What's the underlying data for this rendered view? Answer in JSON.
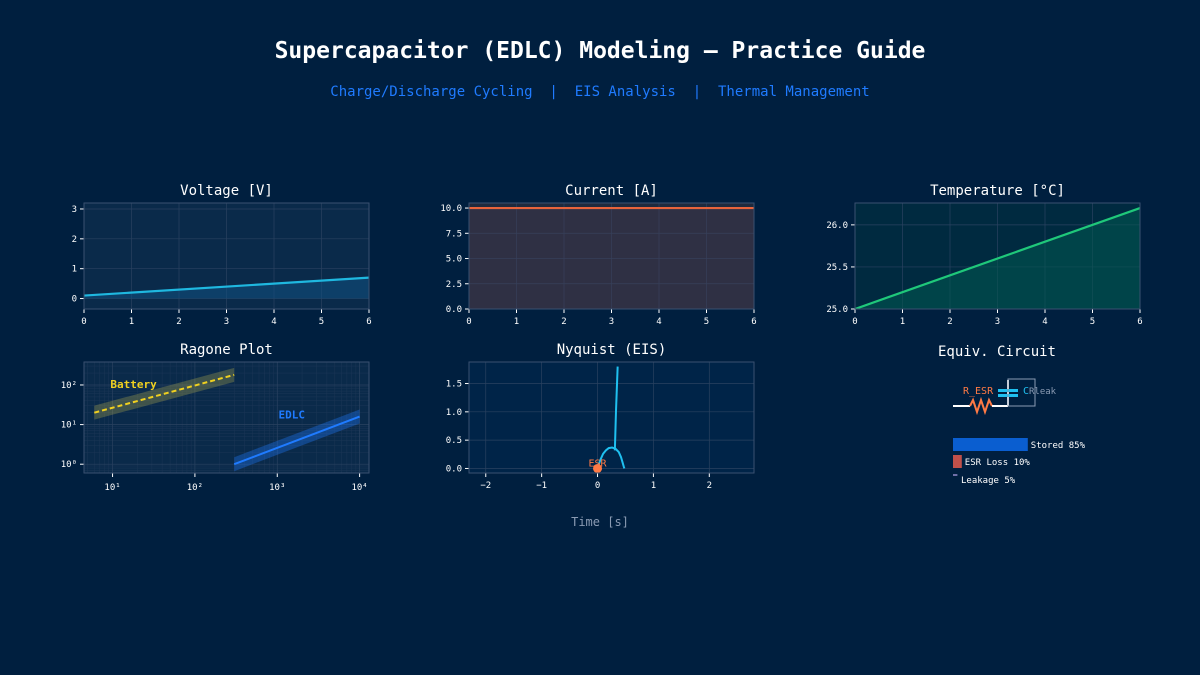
{
  "page": {
    "title": "Supercapacitor (EDLC) Modeling — Practice Guide",
    "subtitle": "Charge/Discharge Cycling  |  EIS Analysis  |  Thermal Management",
    "shared_xlabel": "Time [s]"
  },
  "colors": {
    "background": "#001f3f",
    "voltage": "#1fb8e0",
    "current": "#e8643c",
    "temperature": "#1fc87a",
    "edlc": "#1f7bff",
    "battery": "#f0d020",
    "nyquist": "#1fc0f0",
    "esr_marker": "#ff7a45"
  },
  "chart_data": [
    {
      "id": "voltage",
      "type": "line",
      "title": "Voltage [V]",
      "x": [
        0,
        6
      ],
      "y": [
        0.1,
        0.7
      ],
      "xlim": [
        0,
        6
      ],
      "ylim": [
        -0.35,
        3.2
      ],
      "xticks": [
        0,
        1,
        2,
        3,
        4,
        5,
        6
      ],
      "yticks": [
        0,
        1,
        2,
        3
      ],
      "ytick_labels": [
        "0",
        "1",
        "2",
        "3"
      ],
      "fill": true,
      "grid": true
    },
    {
      "id": "current",
      "type": "line",
      "title": "Current [A]",
      "x": [
        0,
        6
      ],
      "y": [
        10,
        10
      ],
      "xlim": [
        0,
        6
      ],
      "ylim": [
        0,
        10.5
      ],
      "xticks": [
        0,
        1,
        2,
        3,
        4,
        5,
        6
      ],
      "yticks": [
        0,
        2.5,
        5,
        7.5,
        10
      ],
      "ytick_labels": [
        "0.0",
        "2.5",
        "5.0",
        "7.5",
        "10.0"
      ],
      "fill": true,
      "grid": true
    },
    {
      "id": "temperature",
      "type": "line",
      "title": "Temperature [°C]",
      "x": [
        0,
        6
      ],
      "y": [
        25.0,
        26.2
      ],
      "xlim": [
        0,
        6
      ],
      "ylim": [
        25.0,
        26.26
      ],
      "xticks": [
        0,
        1,
        2,
        3,
        4,
        5,
        6
      ],
      "yticks": [
        25.0,
        25.5,
        26.0
      ],
      "ytick_labels": [
        "25.0",
        "25.5",
        "26.0"
      ],
      "fill": true,
      "grid": true
    },
    {
      "id": "ragone",
      "type": "line",
      "title": "Ragone Plot",
      "log_scale": true,
      "xlim": [
        4.5,
        13000
      ],
      "ylim": [
        0.6,
        380
      ],
      "xticks": [
        10,
        100,
        1000,
        10000
      ],
      "xtick_labels": [
        "10¹",
        "10²",
        "10³",
        "10⁴"
      ],
      "yticks": [
        1,
        10,
        100
      ],
      "ytick_labels": [
        "10⁰",
        "10¹",
        "10²"
      ],
      "series": [
        {
          "name": "Battery",
          "x": [
            6,
            300
          ],
          "y": [
            20,
            180
          ],
          "style": "dashed"
        },
        {
          "name": "EDLC",
          "x": [
            300,
            10000
          ],
          "y": [
            1,
            16
          ],
          "style": "solid"
        }
      ],
      "grid": true
    },
    {
      "id": "nyquist",
      "type": "line",
      "title": "Nyquist (EIS)",
      "xlim": [
        -2.3,
        2.8
      ],
      "ylim": [
        -0.08,
        1.88
      ],
      "xticks": [
        -2,
        -1,
        0,
        1,
        2
      ],
      "xtick_labels": [
        "−2",
        "−1",
        "0",
        "1",
        "2"
      ],
      "yticks": [
        0,
        0.5,
        1.0,
        1.5
      ],
      "ytick_labels": [
        "0.0",
        "0.5",
        "1.0",
        "1.5"
      ],
      "x": [
        0,
        0.05,
        0.1,
        0.15,
        0.2,
        0.26,
        0.32,
        0.38,
        0.42,
        0.45,
        0.47,
        0.48,
        0.31,
        0.33,
        0.36
      ],
      "y": [
        0,
        0.15,
        0.26,
        0.32,
        0.36,
        0.37,
        0.35,
        0.29,
        0.2,
        0.1,
        0.03,
        0,
        0.32,
        1.0,
        1.8
      ],
      "annotation": {
        "label": "ESR",
        "x": 0,
        "y": 0
      },
      "grid": true
    }
  ],
  "circuit": {
    "title": "Equiv. Circuit",
    "esr_label": "R_ESR",
    "c_label": "C",
    "rleak_label": "Rleak",
    "bars": [
      {
        "label": "Stored 85%",
        "value": 85,
        "color": "#0a5ed0"
      },
      {
        "label": "ESR Loss 10%",
        "value": 10,
        "color": "#c0504a"
      },
      {
        "label": "Leakage 5%",
        "value": 5,
        "color": "#7070a8"
      }
    ]
  }
}
